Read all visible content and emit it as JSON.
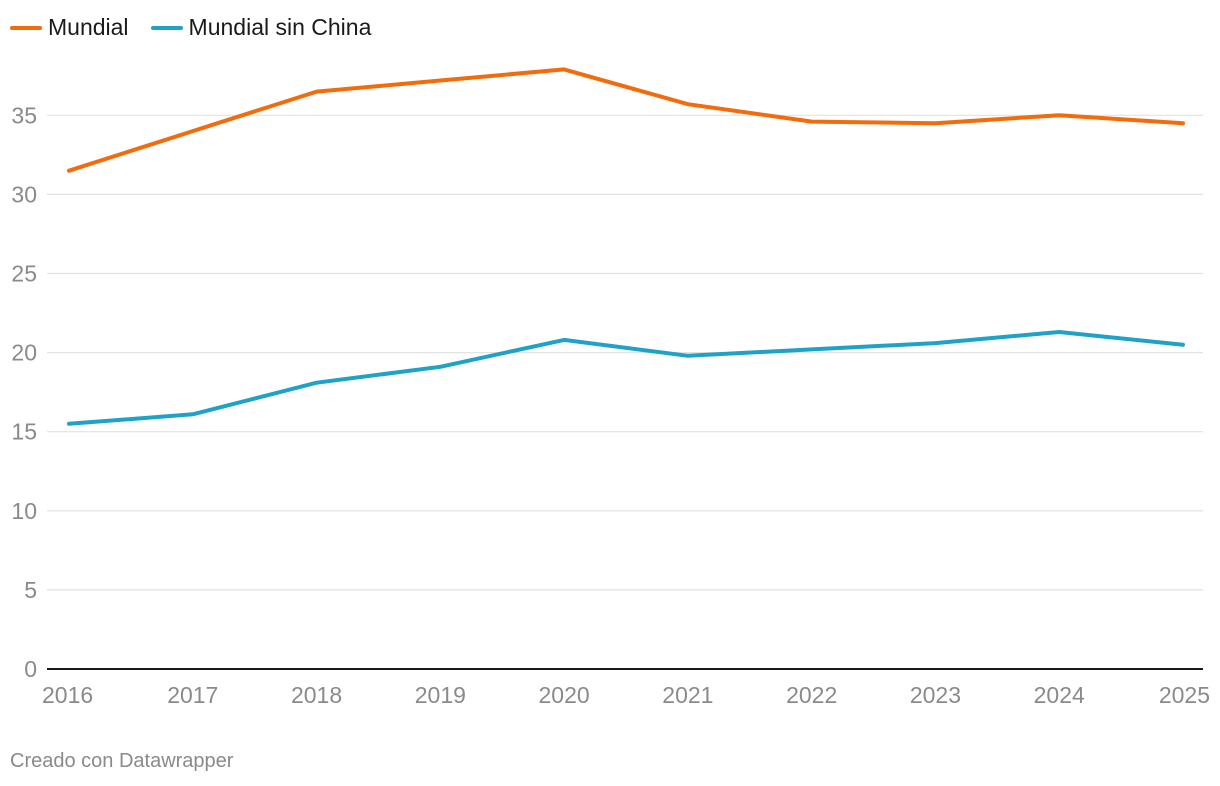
{
  "legend": {
    "items": [
      {
        "label": "Mundial",
        "color": "#f26b0c"
      },
      {
        "label": "Mundial sin China",
        "color": "#1ea2c8"
      }
    ]
  },
  "footer": {
    "credit": "Creado con Datawrapper"
  },
  "chart_data": {
    "type": "line",
    "x": [
      "2016",
      "2017",
      "2018",
      "2019",
      "2020",
      "2021",
      "2022",
      "2023",
      "2024",
      "2025"
    ],
    "ylim": [
      0,
      38
    ],
    "yticks": [
      0,
      5,
      10,
      15,
      20,
      25,
      30,
      35
    ],
    "grid": true,
    "legend_position": "top-left",
    "series": [
      {
        "name": "Mundial",
        "color": "#f26b0c",
        "values": [
          31.5,
          34.0,
          36.5,
          37.2,
          37.9,
          35.7,
          34.6,
          34.5,
          35.0,
          34.5
        ]
      },
      {
        "name": "Mundial sin China",
        "color": "#1ea2c8",
        "values": [
          15.5,
          16.1,
          18.1,
          19.1,
          20.8,
          19.8,
          20.2,
          20.6,
          21.3,
          20.5
        ]
      }
    ]
  }
}
